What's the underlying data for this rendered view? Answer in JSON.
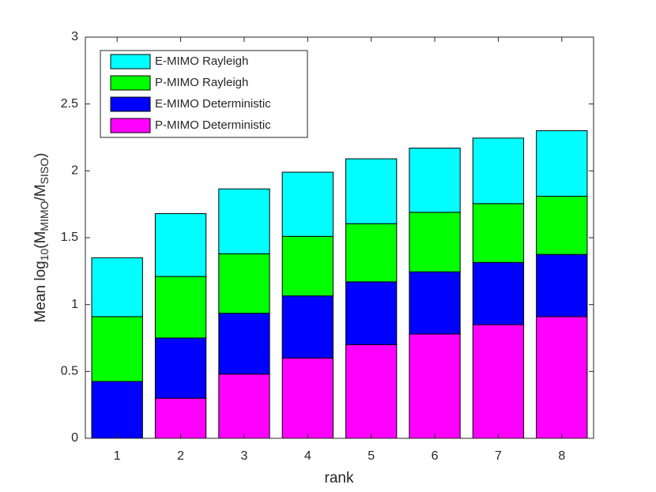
{
  "chart_data": {
    "type": "stacked_bar",
    "x": [
      1,
      2,
      3,
      4,
      5,
      6,
      7,
      8
    ],
    "xlim": [
      0.5,
      8.5
    ],
    "xticks": [
      1,
      2,
      3,
      4,
      5,
      6,
      7,
      8
    ],
    "ylim": [
      0,
      3
    ],
    "yticks": [
      0,
      0.5,
      1,
      1.5,
      2,
      2.5,
      3
    ],
    "xlabel": "rank",
    "ylabel_parts": [
      {
        "text": "Mean log"
      },
      {
        "sub": "10"
      },
      {
        "text": "(M"
      },
      {
        "sub": "MIMO"
      },
      {
        "text": "/M"
      },
      {
        "sub": "SISO"
      },
      {
        "text": ")"
      }
    ],
    "legend": "upper left",
    "series": [
      {
        "name": "P-MIMO Deterministic",
        "color": "#ff00ff",
        "values": [
          0,
          0.3,
          0.48,
          0.6,
          0.7,
          0.78,
          0.85,
          0.91
        ]
      },
      {
        "name": "E-MIMO Deterministic",
        "color": "#0000ff",
        "values": [
          0.425,
          0.45,
          0.455,
          0.465,
          0.47,
          0.465,
          0.465,
          0.465
        ]
      },
      {
        "name": "P-MIMO Rayleigh",
        "color": "#00ff00",
        "values": [
          0.485,
          0.46,
          0.445,
          0.445,
          0.435,
          0.445,
          0.44,
          0.435
        ]
      },
      {
        "name": "E-MIMO Rayleigh",
        "color": "#00ffff",
        "values": [
          0.44,
          0.47,
          0.485,
          0.48,
          0.485,
          0.48,
          0.49,
          0.49
        ]
      }
    ]
  }
}
